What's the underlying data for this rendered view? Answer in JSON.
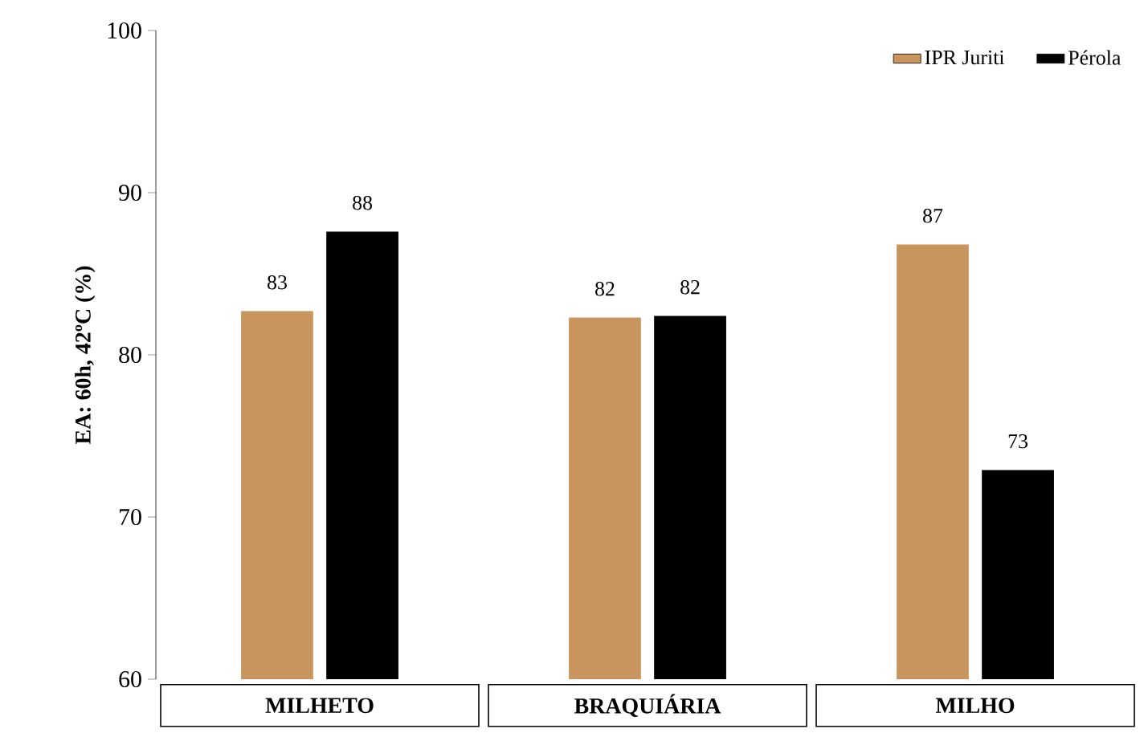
{
  "chart_data": {
    "type": "bar",
    "ylabel": "EA: 60h, 42ºC (%)",
    "categories": [
      "MILHETO",
      "BRAQUIÁRIA",
      "MILHO"
    ],
    "series": [
      {
        "name": "IPR Juriti",
        "color": "#c9955e",
        "values": [
          82.7,
          82.3,
          86.8
        ],
        "value_labels": [
          "83",
          "82",
          "87"
        ]
      },
      {
        "name": "Pérola",
        "color": "#000000",
        "values": [
          87.6,
          82.4,
          72.9
        ],
        "value_labels": [
          "88",
          "82",
          "73"
        ]
      }
    ],
    "ylim": [
      60,
      100
    ],
    "yticks": [
      60,
      70,
      80,
      90,
      100
    ],
    "grid": false,
    "legend": "top right"
  }
}
